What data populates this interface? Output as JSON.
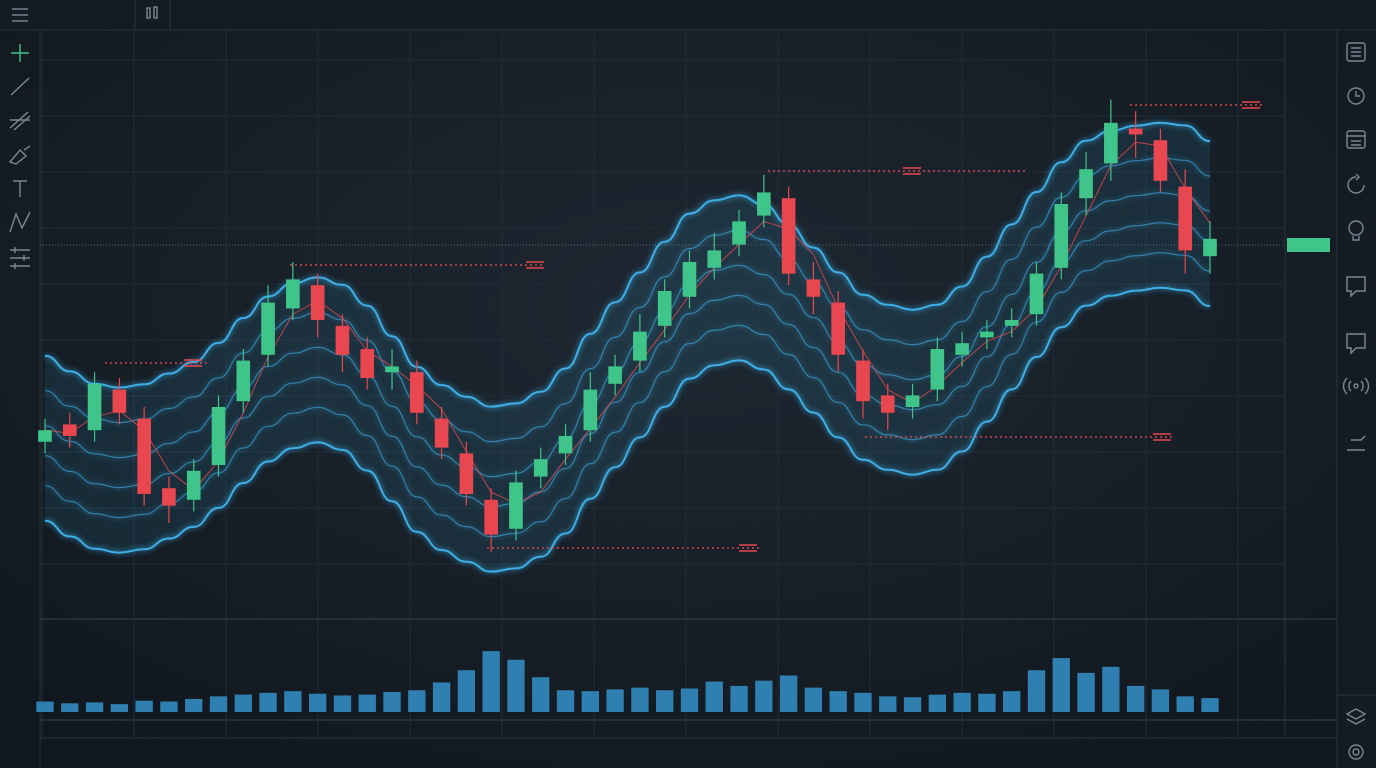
{
  "chart_data": {
    "type": "candlestick",
    "open": [
      29,
      32,
      31,
      38,
      33,
      21,
      19,
      25,
      36,
      44,
      52,
      56,
      49,
      45,
      41,
      41,
      33,
      27,
      19,
      14,
      23,
      27,
      31,
      39,
      43,
      49,
      54,
      59,
      63,
      68,
      71,
      57,
      53,
      43,
      37,
      35,
      38,
      44,
      47,
      49,
      51,
      59,
      71,
      77,
      83,
      81,
      73,
      61
    ],
    "high": [
      33,
      34,
      41,
      40,
      35,
      23,
      26,
      37,
      45,
      56,
      60,
      58,
      51,
      47,
      45,
      43,
      35,
      29,
      21,
      24,
      28,
      32,
      41,
      44,
      51,
      57,
      62,
      65,
      69,
      75,
      73,
      60,
      55,
      45,
      39,
      39,
      47,
      48,
      50,
      52,
      60,
      72,
      79,
      88,
      86,
      83,
      76,
      67
    ],
    "low": [
      27,
      28,
      29,
      32,
      18,
      15,
      17,
      23,
      34,
      42,
      50,
      47,
      41,
      38,
      38,
      32,
      26,
      18,
      10,
      12,
      21,
      25,
      29,
      37,
      41,
      47,
      52,
      57,
      61,
      66,
      56,
      51,
      41,
      33,
      31,
      33,
      36,
      42,
      45,
      47,
      49,
      57,
      68,
      74,
      78,
      72,
      58,
      58
    ],
    "close": [
      31,
      30,
      39,
      34,
      20,
      18,
      24,
      35,
      43,
      53,
      57,
      50,
      44,
      40,
      42,
      34,
      28,
      20,
      13,
      22,
      26,
      30,
      38,
      42,
      48,
      55,
      60,
      62,
      67,
      72,
      58,
      54,
      44,
      36,
      34,
      37,
      45,
      46,
      48,
      50,
      58,
      70,
      76,
      84,
      82,
      74,
      62,
      64
    ],
    "volume": [
      12,
      10,
      11,
      9,
      13,
      12,
      15,
      18,
      20,
      22,
      24,
      21,
      19,
      20,
      23,
      25,
      34,
      48,
      70,
      60,
      40,
      25,
      24,
      26,
      28,
      25,
      27,
      35,
      30,
      36,
      42,
      28,
      24,
      22,
      18,
      17,
      20,
      22,
      21,
      24,
      48,
      62,
      45,
      52,
      30,
      26,
      18,
      16
    ],
    "ylim": [
      0,
      100
    ],
    "volume_lim": [
      0,
      100
    ],
    "up_color": "#3fc48a",
    "down_color": "#e8474f",
    "volume_color": "#2f7fb0",
    "band_color": "#3fb6f0",
    "grid": true
  }
}
